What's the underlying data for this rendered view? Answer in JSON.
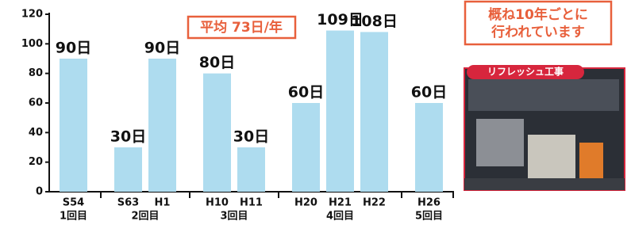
{
  "chart_data": {
    "type": "bar",
    "categories": [
      "S54",
      "S63",
      "H1",
      "H10",
      "H11",
      "H20",
      "H21",
      "H22",
      "H26"
    ],
    "groups": [
      {
        "label": "1回目",
        "members": [
          "S54"
        ]
      },
      {
        "label": "2回目",
        "members": [
          "S63",
          "H1"
        ]
      },
      {
        "label": "3回目",
        "members": [
          "H10",
          "H11"
        ]
      },
      {
        "label": "4回目",
        "members": [
          "H20",
          "H21",
          "H22"
        ]
      },
      {
        "label": "5回目",
        "members": [
          "H26"
        ]
      }
    ],
    "values": [
      90,
      30,
      90,
      80,
      30,
      60,
      109,
      108,
      60
    ],
    "value_labels": [
      "90日",
      "30日",
      "90日",
      "80日",
      "30日",
      "60日",
      "109日",
      "108日",
      "60日"
    ],
    "color": "#aedcef",
    "ylim": [
      0,
      120
    ],
    "yticks": [
      0,
      20,
      40,
      60,
      80,
      100,
      120
    ],
    "annotations": [
      "平均 73日/年",
      "概ね10年ごとに",
      "行われています",
      "リフレッシュ工事"
    ]
  }
}
